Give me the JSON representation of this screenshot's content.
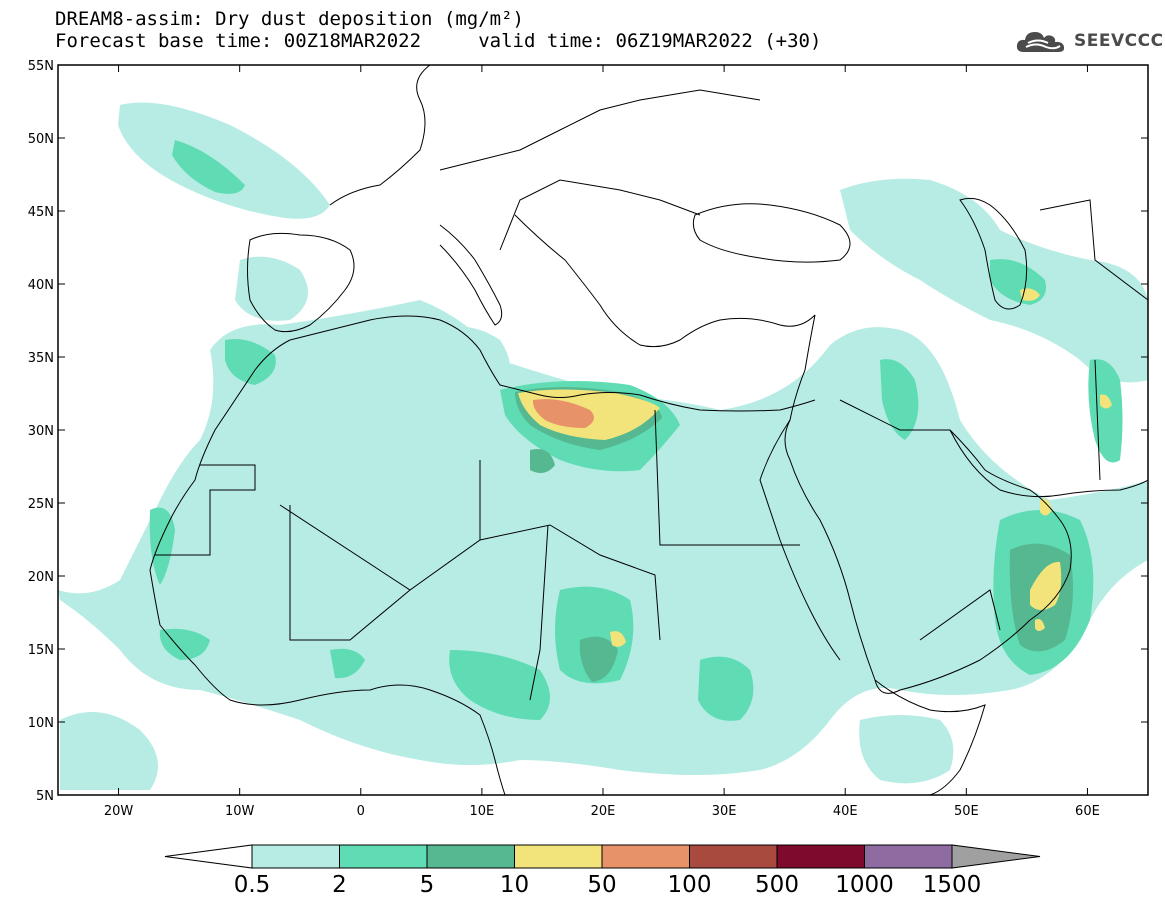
{
  "header": {
    "title_line1": "DREAM8-assim: Dry dust deposition (mg/m²)",
    "title_line2": "Forecast base time: 00Z18MAR2022     valid time: 06Z19MAR2022 (+30)",
    "logo_text": "SEEVCCC"
  },
  "map": {
    "projection": "lat-lon",
    "lon_range": [
      -25,
      65
    ],
    "lat_range": [
      5,
      55
    ],
    "lat_ticks": [
      "55N",
      "50N",
      "45N",
      "40N",
      "35N",
      "30N",
      "25N",
      "20N",
      "15N",
      "10N",
      "5N"
    ],
    "lon_ticks": [
      "20W",
      "10W",
      "0",
      "10E",
      "20E",
      "30E",
      "40E",
      "50E",
      "60E"
    ]
  },
  "colorbar": {
    "labels": [
      "0.5",
      "2",
      "5",
      "10",
      "50",
      "100",
      "500",
      "1000",
      "1500"
    ],
    "colors": [
      "#b6ece4",
      "#5fdcb4",
      "#55b891",
      "#f2e47a",
      "#e8926a",
      "#a94a3f",
      "#7e0a2e",
      "#8e6ba0",
      "#a0a0a0"
    ]
  },
  "legend_colors": {
    "level1": "#b6ece4",
    "level2": "#5fdcb4",
    "level3": "#55b891",
    "level4": "#f2e47a",
    "level5": "#e8926a",
    "level6": "#a94a3f"
  }
}
